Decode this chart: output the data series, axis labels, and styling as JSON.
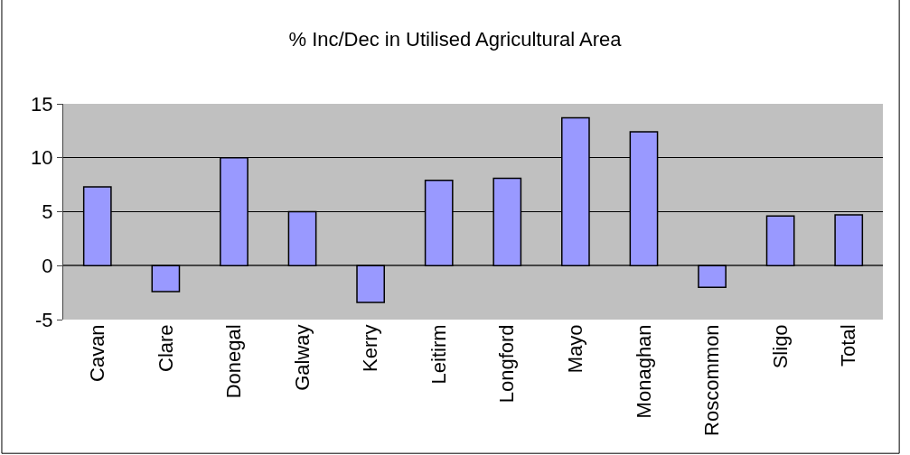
{
  "chart_data": {
    "type": "bar",
    "title": "% Inc/Dec in Utilised Agricultural Area",
    "categories": [
      "Cavan",
      "Clare",
      "Donegal",
      "Galway",
      "Kerry",
      "Leitirm",
      "Longford",
      "Mayo",
      "Monaghan",
      "Roscommon",
      "Sligo",
      "Total"
    ],
    "values": [
      7.3,
      -2.4,
      10,
      5,
      -3.4,
      7.9,
      8.1,
      13.7,
      12.4,
      -2.0,
      4.6,
      4.7
    ],
    "color": "#9999ff",
    "ylim": [
      -5,
      15
    ],
    "yticks": [
      -5,
      0,
      5,
      10,
      15
    ],
    "grid": "y"
  }
}
